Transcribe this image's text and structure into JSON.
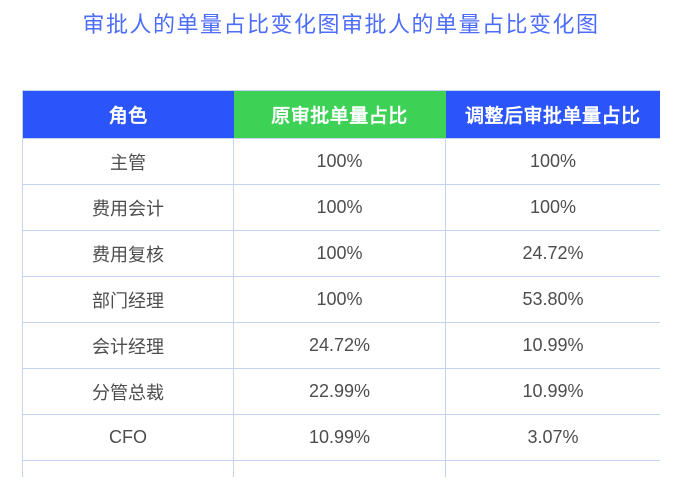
{
  "page": {
    "title": "审批人的单量占比变化图审批人的单量占比变化图"
  },
  "colors": {
    "title_text": "#4d6cfa",
    "header_blue": "#2b55fa",
    "header_green": "#3dd156",
    "cell_text": "#4d4d4d",
    "border": "#c5d3f3",
    "background": "#ffffff"
  },
  "table": {
    "columns": [
      {
        "label": "角色"
      },
      {
        "label": "原审批单量占比"
      },
      {
        "label": "调整后审批单量占比"
      }
    ],
    "rows": [
      {
        "role": "主管",
        "original": "100%",
        "adjusted": "100%"
      },
      {
        "role": "费用会计",
        "original": "100%",
        "adjusted": "100%"
      },
      {
        "role": "费用复核",
        "original": "100%",
        "adjusted": "24.72%"
      },
      {
        "role": "部门经理",
        "original": "100%",
        "adjusted": "53.80%"
      },
      {
        "role": "会计经理",
        "original": "24.72%",
        "adjusted": "10.99%"
      },
      {
        "role": "分管总裁",
        "original": "22.99%",
        "adjusted": "10.99%"
      },
      {
        "role": "CFO",
        "original": "10.99%",
        "adjusted": "3.07%"
      }
    ]
  },
  "chart_data": {
    "type": "table",
    "title": "审批人的单量占比变化图审批人的单量占比变化图",
    "columns": [
      "角色",
      "原审批单量占比",
      "调整后审批单量占比"
    ],
    "categories": [
      "主管",
      "费用会计",
      "费用复核",
      "部门经理",
      "会计经理",
      "分管总裁",
      "CFO"
    ],
    "series": [
      {
        "name": "原审批单量占比",
        "values": [
          100,
          100,
          100,
          100,
          24.72,
          22.99,
          10.99
        ]
      },
      {
        "name": "调整后审批单量占比",
        "values": [
          100,
          100,
          24.72,
          53.8,
          10.99,
          10.99,
          3.07
        ]
      }
    ],
    "unit": "%"
  }
}
